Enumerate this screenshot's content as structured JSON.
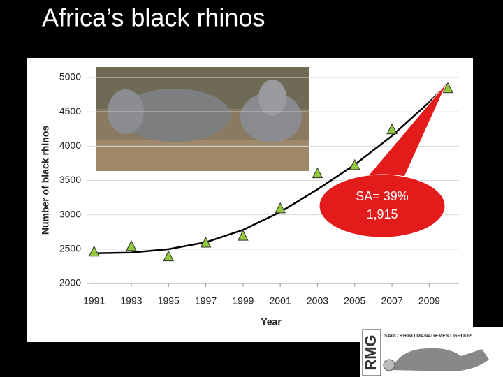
{
  "title": "Africa’s black rhinos",
  "chart_data": {
    "type": "scatter",
    "x_label": "Year",
    "y_label": "Number of black rhinos",
    "x": [
      1991,
      1993,
      1995,
      1997,
      1999,
      2001,
      2003,
      2005,
      2007,
      2010
    ],
    "values": [
      2460,
      2540,
      2390,
      2590,
      2690,
      3090,
      3600,
      3720,
      4240,
      4840
    ],
    "color": "#92c83e",
    "trend": {
      "x": [
        1991,
        1993,
        1995,
        1997,
        1999,
        2001,
        2003,
        2005,
        2007,
        2009,
        2010
      ],
      "values": [
        2440,
        2450,
        2500,
        2600,
        2780,
        3040,
        3370,
        3730,
        4150,
        4640,
        4910
      ],
      "color": "#000000"
    },
    "xlim": [
      1990.6,
      2010.6
    ],
    "ylim": [
      2000,
      5000
    ],
    "xticks": [
      1991,
      1993,
      1995,
      1997,
      1999,
      2001,
      2003,
      2005,
      2007,
      2009
    ],
    "yticks": [
      2000,
      2500,
      3000,
      3500,
      4000,
      4500,
      5000
    ],
    "grid": true
  },
  "callout": {
    "lines": [
      "SA= 39%",
      "1,915"
    ],
    "color": "#e31b1b"
  },
  "logo": {
    "mark": "RMG",
    "text": "SADC RHINO MANAGEMENT GROUP"
  }
}
